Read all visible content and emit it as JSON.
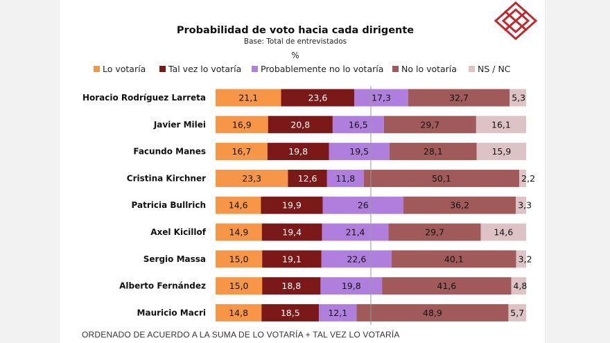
{
  "colors": {
    "series": [
      "#f79646",
      "#7b1818",
      "#b07fdd",
      "#a05a5a",
      "#dec3c6"
    ],
    "logo": "#c0282d"
  },
  "chart_data": {
    "type": "bar",
    "stacked": true,
    "orientation": "horizontal",
    "percent_stacked": true,
    "title": "Probabilidad  de voto hacia cada dirigente",
    "subtitle": "Base: Total de entrevistados",
    "unit": "%",
    "legend_position": "top",
    "categories": [
      "Horacio Rodríguez Larreta",
      "Javier Milei",
      "Facundo Manes",
      "Cristina Kirchner",
      "Patricia Bullrich",
      "Axel Kicillof",
      "Sergio Massa",
      "Alberto Fernández",
      "Mauricio Macri"
    ],
    "series": [
      {
        "name": "Lo votaría",
        "values": [
          21.1,
          16.9,
          16.7,
          23.3,
          14.6,
          14.9,
          15.0,
          15.0,
          14.8
        ],
        "labels": [
          "21,1",
          "16,9",
          "16,7",
          "23,3",
          "14,6",
          "14,9",
          "15,0",
          "15,0",
          "14,8"
        ]
      },
      {
        "name": "Tal vez lo votaría",
        "values": [
          23.6,
          20.8,
          19.8,
          12.6,
          19.9,
          19.4,
          19.1,
          18.8,
          18.5
        ],
        "labels": [
          "23,6",
          "20,8",
          "19,8",
          "12,6",
          "19,9",
          "19,4",
          "19,1",
          "18,8",
          "18,5"
        ]
      },
      {
        "name": "Probablemente no lo votaría",
        "values": [
          17.3,
          16.5,
          19.5,
          11.8,
          26,
          21.4,
          22.6,
          19.8,
          12.1
        ],
        "labels": [
          "17,3",
          "16,5",
          "19,5",
          "11,8",
          "26",
          "21,4",
          "22,6",
          "19,8",
          "12,1"
        ]
      },
      {
        "name": "No lo votaría",
        "values": [
          32.7,
          29.7,
          28.1,
          50.1,
          36.2,
          29.7,
          40.1,
          41.6,
          48.9
        ],
        "labels": [
          "32,7",
          "29,7",
          "28,1",
          "50,1",
          "36,2",
          "29,7",
          "40,1",
          "41,6",
          "48,9"
        ]
      },
      {
        "name": "NS / NC",
        "values": [
          5.3,
          16.1,
          15.9,
          2.2,
          3.3,
          14.6,
          3.2,
          4.8,
          5.7
        ],
        "labels": [
          "5,3",
          "16,1",
          "15,9",
          "2,2",
          "3,3",
          "14,6",
          "3,2",
          "4,8",
          "5,7"
        ]
      }
    ],
    "footnote": "ORDENADO DE ACUERDO A LA SUMA DE LO VOTARÍA  + TAL VEZ LO VOTARÍA"
  }
}
